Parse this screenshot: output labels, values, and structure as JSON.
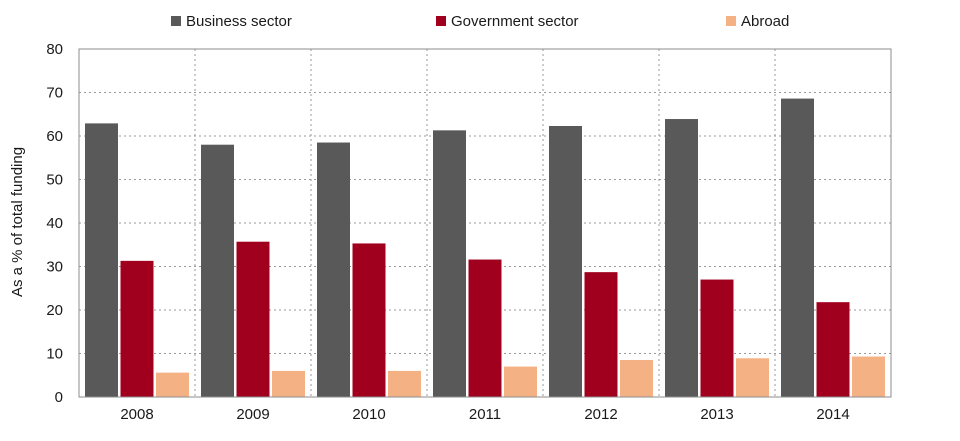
{
  "chart_data": {
    "type": "bar",
    "title": "",
    "xlabel": "",
    "ylabel": "As a % of total funding",
    "ylim": [
      0,
      80
    ],
    "yticks": [
      0,
      10,
      20,
      30,
      40,
      50,
      60,
      70,
      80
    ],
    "grid": true,
    "legend_position": "top",
    "categories": [
      "2008",
      "2009",
      "2010",
      "2011",
      "2012",
      "2013",
      "2014"
    ],
    "series": [
      {
        "name": "Business sector",
        "color": "#595959",
        "values": [
          62.9,
          58.0,
          58.5,
          61.3,
          62.3,
          63.9,
          68.6
        ]
      },
      {
        "name": "Government sector",
        "color": "#a0001e",
        "values": [
          31.3,
          35.7,
          35.3,
          31.6,
          28.7,
          27.0,
          21.8
        ]
      },
      {
        "name": "Abroad",
        "color": "#f4b183",
        "values": [
          5.6,
          6.0,
          6.0,
          7.0,
          8.5,
          8.9,
          9.3
        ]
      }
    ]
  }
}
